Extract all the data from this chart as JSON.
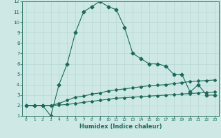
{
  "xlabel": "Humidex (Indice chaleur)",
  "xlim": [
    -0.5,
    23.5
  ],
  "ylim": [
    1,
    12
  ],
  "xticks": [
    0,
    1,
    2,
    3,
    4,
    5,
    6,
    7,
    8,
    9,
    10,
    11,
    12,
    13,
    14,
    15,
    16,
    17,
    18,
    19,
    20,
    21,
    22,
    23
  ],
  "yticks": [
    1,
    2,
    3,
    4,
    5,
    6,
    7,
    8,
    9,
    10,
    11,
    12
  ],
  "bg_color": "#cde8e5",
  "line_color": "#1a6b5a",
  "grid_color": "#b8d8d5",
  "line1_x": [
    0,
    1,
    2,
    3,
    4,
    5,
    6,
    7,
    8,
    9,
    10,
    11,
    12,
    13,
    14,
    15,
    16,
    17,
    18,
    19,
    20,
    21,
    22,
    23
  ],
  "line1_y": [
    2,
    2,
    2,
    1,
    4,
    6,
    9,
    11,
    11.5,
    12,
    11.5,
    11.2,
    9.5,
    7,
    6.5,
    6,
    6,
    5.8,
    5,
    5,
    3.3,
    4,
    3,
    3
  ],
  "line2_x": [
    0,
    1,
    2,
    3,
    4,
    5,
    6,
    7,
    8,
    9,
    10,
    11,
    12,
    13,
    14,
    15,
    16,
    17,
    18,
    19,
    20,
    21,
    22,
    23
  ],
  "line2_y": [
    2,
    2,
    2,
    2,
    2.2,
    2.5,
    2.8,
    2.9,
    3.1,
    3.2,
    3.4,
    3.5,
    3.6,
    3.7,
    3.8,
    3.9,
    3.95,
    4.0,
    4.1,
    4.2,
    4.3,
    4.35,
    4.4,
    4.45
  ],
  "line3_x": [
    0,
    1,
    2,
    3,
    4,
    5,
    6,
    7,
    8,
    9,
    10,
    11,
    12,
    13,
    14,
    15,
    16,
    17,
    18,
    19,
    20,
    21,
    22,
    23
  ],
  "line3_y": [
    2,
    2,
    2,
    2,
    2.05,
    2.1,
    2.2,
    2.3,
    2.4,
    2.5,
    2.6,
    2.7,
    2.75,
    2.8,
    2.85,
    2.9,
    2.95,
    3.0,
    3.05,
    3.1,
    3.15,
    3.2,
    3.25,
    3.3
  ]
}
